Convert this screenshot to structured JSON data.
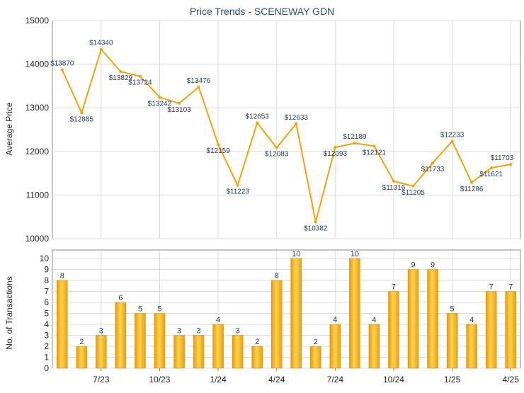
{
  "accent_line": "#f5a300",
  "bar_color": "#f2b01e",
  "chart_data": [
    {
      "type": "line",
      "title": "Price Trends - SCENEWAY GDN",
      "ylabel": "Average Price",
      "ylim": [
        10000,
        15000
      ],
      "yticks": [
        "10000",
        "11000",
        "12000",
        "13000",
        "14000",
        "15000"
      ],
      "grid": true,
      "series": [
        {
          "values": [
            13870,
            12885,
            14340,
            13829,
            13724,
            13242,
            13103,
            13476,
            12159,
            11223,
            12653,
            12083,
            12633,
            10382,
            12093,
            12189,
            12121,
            11316,
            11205,
            11733,
            12233,
            11286,
            11621,
            11703
          ],
          "labels": [
            "$13870",
            "$12885",
            "$14340",
            "$13829",
            "$13724",
            "$13242",
            "$13103",
            "$13476",
            "$12159",
            "$11223",
            "$12653",
            "$12083",
            "$12633",
            "$10382",
            "$12093",
            "$12189",
            "$12121",
            "$11316",
            "$11205",
            "$11733",
            "$12233",
            "$11286",
            "$11621",
            "$11703"
          ]
        }
      ]
    },
    {
      "type": "bar",
      "ylabel": "No. of Transactions",
      "ylim": [
        0,
        10
      ],
      "yticks": [
        "0",
        "1",
        "2",
        "3",
        "4",
        "5",
        "6",
        "7",
        "8",
        "9",
        "10"
      ],
      "grid": true,
      "values": [
        8,
        2,
        3,
        6,
        5,
        5,
        3,
        3,
        4,
        3,
        2,
        8,
        10,
        2,
        4,
        10,
        4,
        7,
        9,
        9,
        5,
        4,
        7,
        7
      ],
      "xticks": [
        {
          "index": 2,
          "label": "7/23"
        },
        {
          "index": 5,
          "label": "10/23"
        },
        {
          "index": 8,
          "label": "1/24"
        },
        {
          "index": 11,
          "label": "4/24"
        },
        {
          "index": 14,
          "label": "7/24"
        },
        {
          "index": 17,
          "label": "10/24"
        },
        {
          "index": 20,
          "label": "1/25"
        },
        {
          "index": 23,
          "label": "4/25"
        }
      ]
    }
  ]
}
